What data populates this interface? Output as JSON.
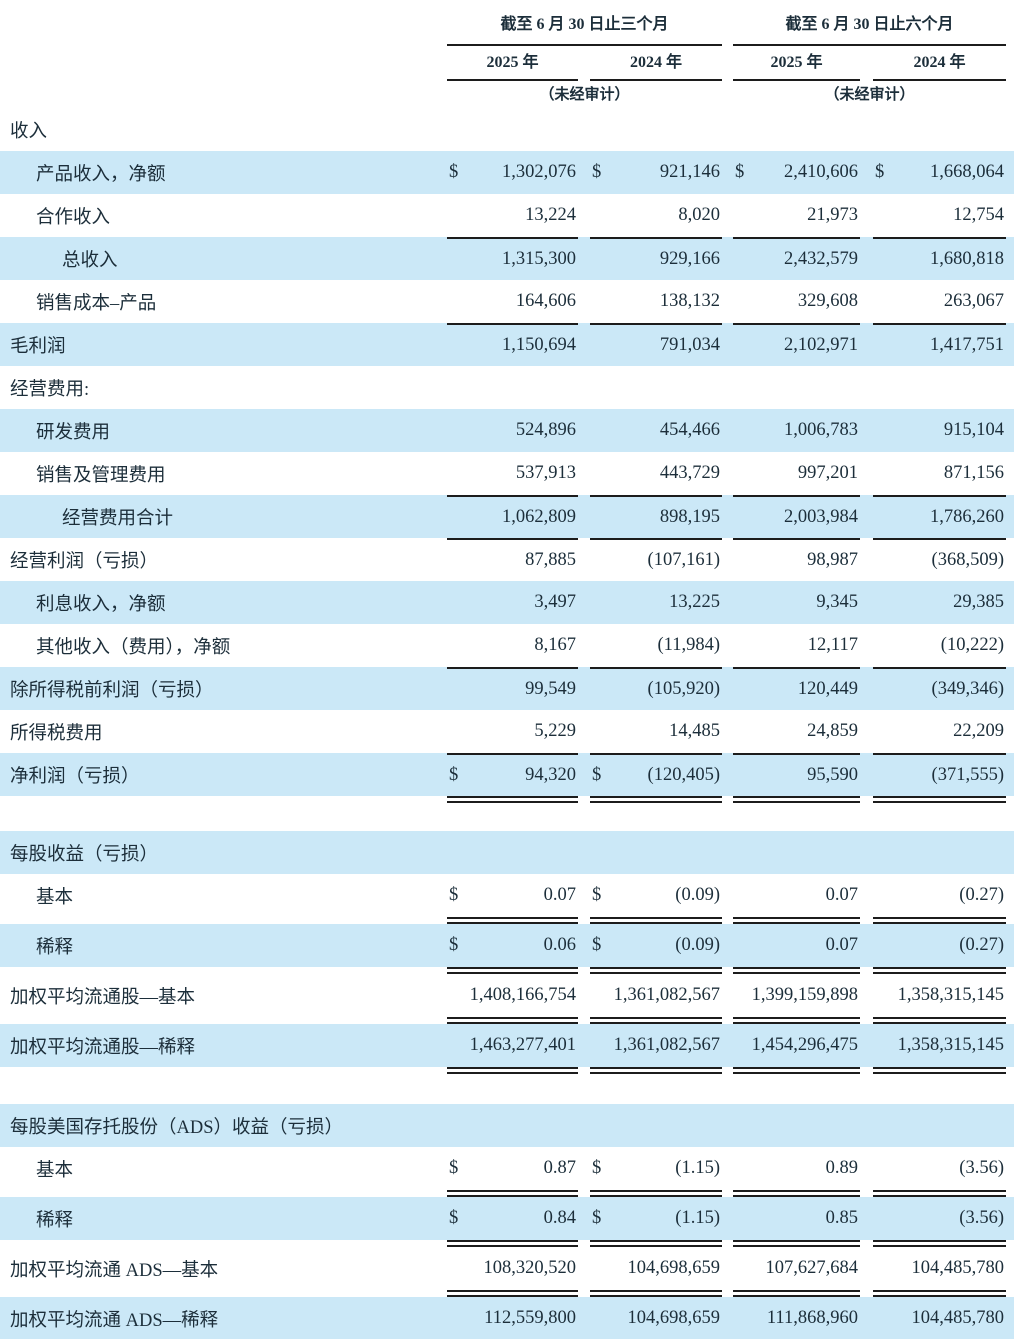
{
  "page": {
    "colors": {
      "stripe": "#cbe8f7",
      "ink": "#1c2e3a",
      "line": "#1c1c1c",
      "background": "#ffffff"
    }
  },
  "header": {
    "groups": [
      {
        "title": "截至 6 月 30 日止三个月",
        "years": [
          "2025 年",
          "2024 年"
        ],
        "note": "（未经审计）"
      },
      {
        "title": "截至 6 月 30 日止六个月",
        "years": [
          "2025 年",
          "2024 年"
        ],
        "note": "（未经审计）"
      }
    ]
  },
  "table": {
    "rows": [
      {
        "label": "收入",
        "indent": 0,
        "stripe": false
      },
      {
        "label": "产品收入，净额",
        "indent": 1,
        "stripe": true,
        "cells": [
          [
            "$",
            "1,302,076"
          ],
          [
            "$",
            "921,146"
          ],
          [
            "$",
            "2,410,606"
          ],
          [
            "$",
            "1,668,064"
          ]
        ]
      },
      {
        "label": "合作收入",
        "indent": 1,
        "stripe": false,
        "cells": [
          [
            "",
            "13,224"
          ],
          [
            "",
            "8,020"
          ],
          [
            "",
            "21,973"
          ],
          [
            "",
            "12,754"
          ]
        ]
      },
      {
        "label": "总收入",
        "indent": 2,
        "stripe": true,
        "top": true,
        "cells": [
          [
            "",
            "1,315,300"
          ],
          [
            "",
            "929,166"
          ],
          [
            "",
            "2,432,579"
          ],
          [
            "",
            "1,680,818"
          ]
        ]
      },
      {
        "label": "销售成本–产品",
        "indent": 1,
        "stripe": false,
        "cells": [
          [
            "",
            "164,606"
          ],
          [
            "",
            "138,132"
          ],
          [
            "",
            "329,608"
          ],
          [
            "",
            "263,067"
          ]
        ]
      },
      {
        "label": "毛利润",
        "indent": 0,
        "stripe": true,
        "top": true,
        "cells": [
          [
            "",
            "1,150,694"
          ],
          [
            "",
            "791,034"
          ],
          [
            "",
            "2,102,971"
          ],
          [
            "",
            "1,417,751"
          ]
        ]
      },
      {
        "label": "经营费用:",
        "indent": 0,
        "stripe": false
      },
      {
        "label": "研发费用",
        "indent": 1,
        "stripe": true,
        "cells": [
          [
            "",
            "524,896"
          ],
          [
            "",
            "454,466"
          ],
          [
            "",
            "1,006,783"
          ],
          [
            "",
            "915,104"
          ]
        ]
      },
      {
        "label": "销售及管理费用",
        "indent": 1,
        "stripe": false,
        "cells": [
          [
            "",
            "537,913"
          ],
          [
            "",
            "443,729"
          ],
          [
            "",
            "997,201"
          ],
          [
            "",
            "871,156"
          ]
        ]
      },
      {
        "label": "经营费用合计",
        "indent": 2,
        "stripe": true,
        "top": true,
        "cells": [
          [
            "",
            "1,062,809"
          ],
          [
            "",
            "898,195"
          ],
          [
            "",
            "2,003,984"
          ],
          [
            "",
            "1,786,260"
          ]
        ]
      },
      {
        "label": "经营利润（亏损）",
        "indent": 0,
        "stripe": false,
        "top": true,
        "cells": [
          [
            "",
            "87,885"
          ],
          [
            "",
            "(107,161)"
          ],
          [
            "",
            "98,987"
          ],
          [
            "",
            "(368,509)"
          ]
        ]
      },
      {
        "label": "利息收入，净额",
        "indent": 1,
        "stripe": true,
        "cells": [
          [
            "",
            "3,497"
          ],
          [
            "",
            "13,225"
          ],
          [
            "",
            "9,345"
          ],
          [
            "",
            "29,385"
          ]
        ]
      },
      {
        "label": "其他收入（费用），净额",
        "indent": 1,
        "stripe": false,
        "cells": [
          [
            "",
            "8,167"
          ],
          [
            "",
            "(11,984)"
          ],
          [
            "",
            "12,117"
          ],
          [
            "",
            "(10,222)"
          ]
        ]
      },
      {
        "label": "除所得税前利润（亏损）",
        "indent": 0,
        "stripe": true,
        "top": true,
        "cells": [
          [
            "",
            "99,549"
          ],
          [
            "",
            "(105,920)"
          ],
          [
            "",
            "120,449"
          ],
          [
            "",
            "(349,346)"
          ]
        ]
      },
      {
        "label": "所得税费用",
        "indent": 0,
        "stripe": false,
        "cells": [
          [
            "",
            "5,229"
          ],
          [
            "",
            "14,485"
          ],
          [
            "",
            "24,859"
          ],
          [
            "",
            "22,209"
          ]
        ]
      },
      {
        "label": "净利润（亏损）",
        "indent": 0,
        "stripe": true,
        "top": true,
        "after": "double",
        "cells": [
          [
            "$",
            "94,320"
          ],
          [
            "$",
            "(120,405)"
          ],
          [
            "",
            "95,590"
          ],
          [
            "",
            "(371,555)"
          ]
        ]
      },
      {
        "label": "每股收益（亏损）",
        "indent": 0,
        "stripe": true,
        "gap": 28
      },
      {
        "label": "基本",
        "indent": 1,
        "stripe": false,
        "after": "double",
        "cells": [
          [
            "$",
            "0.07"
          ],
          [
            "$",
            "(0.09)"
          ],
          [
            "",
            "0.07"
          ],
          [
            "",
            "(0.27)"
          ]
        ]
      },
      {
        "label": "稀释",
        "indent": 1,
        "stripe": true,
        "after": "double",
        "cells": [
          [
            "$",
            "0.06"
          ],
          [
            "$",
            "(0.09)"
          ],
          [
            "",
            "0.07"
          ],
          [
            "",
            "(0.27)"
          ]
        ]
      },
      {
        "label": "加权平均流通股—基本",
        "indent": 0,
        "stripe": false,
        "after": "double",
        "cells": [
          [
            "",
            "1,408,166,754"
          ],
          [
            "",
            "1,361,082,567"
          ],
          [
            "",
            "1,399,159,898"
          ],
          [
            "",
            "1,358,315,145"
          ]
        ]
      },
      {
        "label": "加权平均流通股—稀释",
        "indent": 0,
        "stripe": true,
        "after": "double",
        "cells": [
          [
            "",
            "1,463,277,401"
          ],
          [
            "",
            "1,361,082,567"
          ],
          [
            "",
            "1,454,296,475"
          ],
          [
            "",
            "1,358,315,145"
          ]
        ]
      },
      {
        "label": "每股美国存托股份（ADS）收益（亏损）",
        "indent": 0,
        "stripe": true,
        "gap": 30
      },
      {
        "label": "基本",
        "indent": 1,
        "stripe": false,
        "after": "double",
        "cells": [
          [
            "$",
            "0.87"
          ],
          [
            "$",
            "(1.15)"
          ],
          [
            "",
            "0.89"
          ],
          [
            "",
            "(3.56)"
          ]
        ]
      },
      {
        "label": "稀释",
        "indent": 1,
        "stripe": true,
        "after": "double",
        "cells": [
          [
            "$",
            "0.84"
          ],
          [
            "$",
            "(1.15)"
          ],
          [
            "",
            "0.85"
          ],
          [
            "",
            "(3.56)"
          ]
        ]
      },
      {
        "label": "加权平均流通 ADS—基本",
        "indent": 0,
        "stripe": false,
        "after": "double",
        "cells": [
          [
            "",
            "108,320,520"
          ],
          [
            "",
            "104,698,659"
          ],
          [
            "",
            "107,627,684"
          ],
          [
            "",
            "104,485,780"
          ]
        ]
      },
      {
        "label": "加权平均流通 ADS—稀释",
        "indent": 0,
        "stripe": true,
        "after": "double",
        "cells": [
          [
            "",
            "112,559,800"
          ],
          [
            "",
            "104,698,659"
          ],
          [
            "",
            "111,868,960"
          ],
          [
            "",
            "104,485,780"
          ]
        ]
      }
    ]
  }
}
